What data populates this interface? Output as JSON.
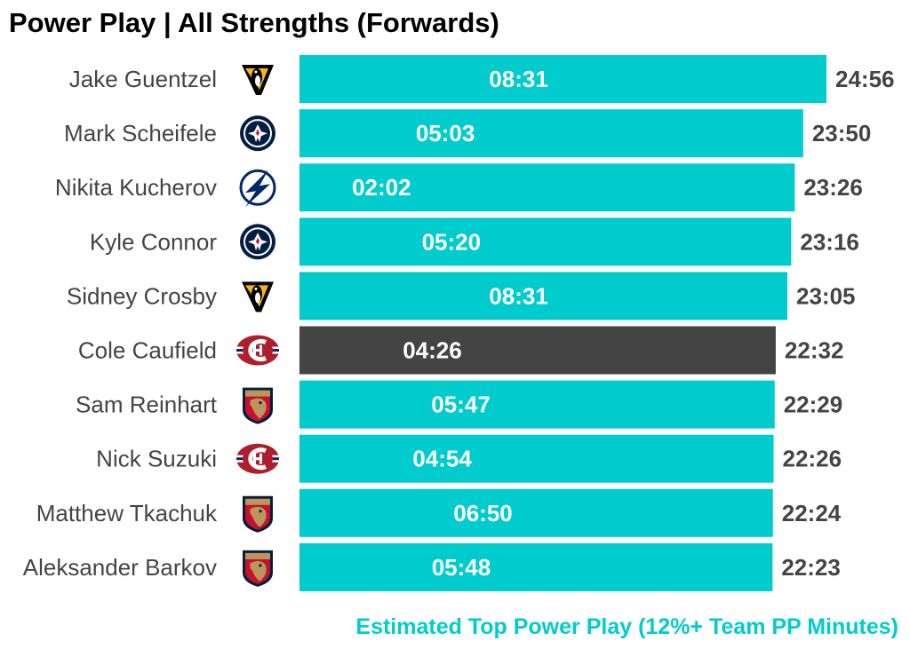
{
  "chart_data": {
    "type": "bar",
    "orientation": "horizontal",
    "title": "Power Play | All Strengths (Forwards)",
    "caption": "Estimated Top Power Play (12%+ Team PP Minutes)",
    "value_unit": "minutes",
    "grid": false,
    "legend": "none",
    "colors": {
      "default": "#00ccce",
      "highlight": "#444444",
      "caption": "#00ccce"
    },
    "categories": [
      "Jake Guentzel",
      "Mark Scheifele",
      "Nikita Kucherov",
      "Kyle Connor",
      "Sidney Crosby",
      "Cole Caufield",
      "Sam Reinhart",
      "Nick Suzuki",
      "Matthew Tkachuk",
      "Aleksander Barkov"
    ],
    "teams": [
      "pittsburgh-penguins-logo",
      "winnipeg-jets-logo",
      "tampa-bay-lightning-logo",
      "winnipeg-jets-logo",
      "pittsburgh-penguins-logo",
      "montreal-canadiens-logo",
      "florida-panthers-logo",
      "montreal-canadiens-logo",
      "florida-panthers-logo",
      "florida-panthers-logo"
    ],
    "highlight": [
      "Cole Caufield"
    ],
    "values": [
      24.9333,
      23.8333,
      23.4333,
      23.2667,
      23.0833,
      22.5333,
      22.4833,
      22.4333,
      22.4,
      22.3833
    ],
    "total_labels": [
      "24:56",
      "23:50",
      "23:26",
      "23:16",
      "23:05",
      "22:32",
      "22:29",
      "22:26",
      "22:24",
      "22:23"
    ],
    "inner_values": [
      8.5167,
      5.05,
      2.0333,
      5.3333,
      8.5167,
      4.4333,
      5.7833,
      4.9,
      6.8333,
      5.8
    ],
    "inner_labels": [
      "08:31",
      "05:03",
      "02:02",
      "05:20",
      "08:31",
      "04:26",
      "05:47",
      "04:54",
      "06:50",
      "05:48"
    ]
  }
}
